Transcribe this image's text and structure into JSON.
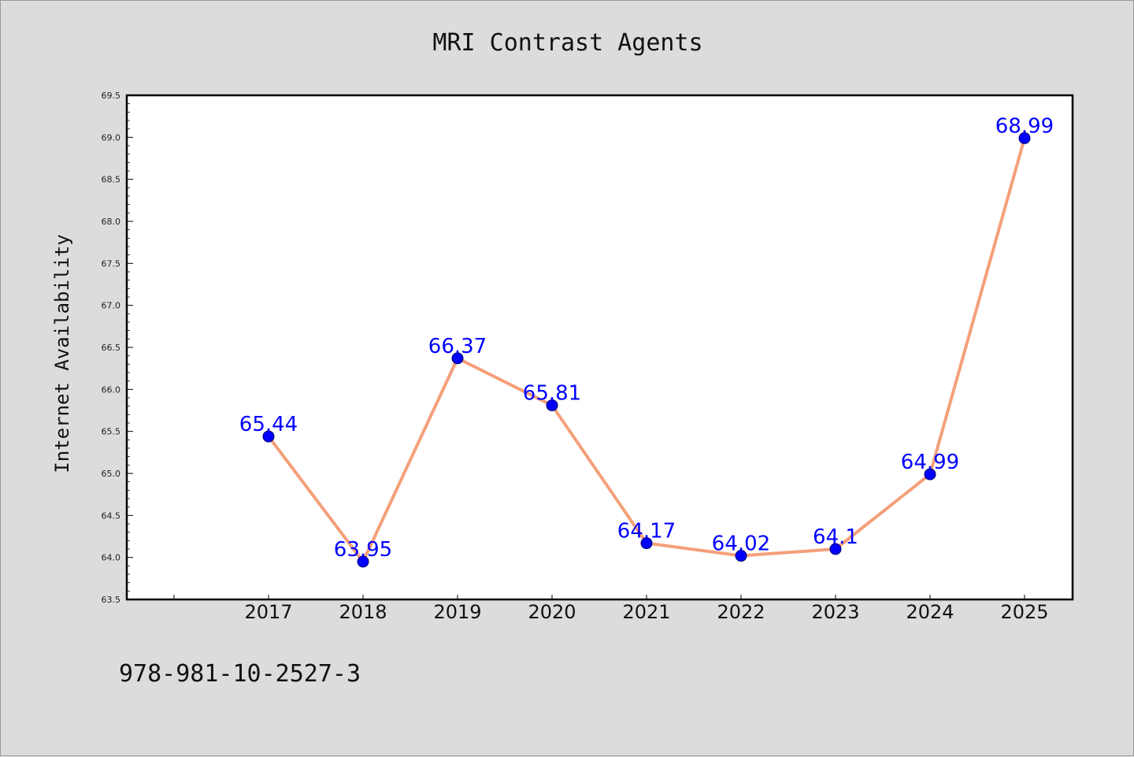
{
  "chart_data": {
    "type": "line",
    "title": "MRI Contrast Agents",
    "xlabel": "",
    "ylabel": "Internet Availability",
    "categories": [
      "2017",
      "2018",
      "2019",
      "2020",
      "2021",
      "2022",
      "2023",
      "2024",
      "2025"
    ],
    "values": [
      65.44,
      63.95,
      66.37,
      65.81,
      64.17,
      64.02,
      64.1,
      64.99,
      68.99
    ],
    "data_labels": [
      "65.44",
      "63.95",
      "66.37",
      "65.81",
      "64.17",
      "64.02",
      "64.1",
      "64.99",
      "68.99"
    ],
    "ylim": [
      63.5,
      69.5
    ],
    "yticks": [
      "63.5",
      "64.0",
      "64.5",
      "65.0",
      "65.5",
      "66.0",
      "66.5",
      "67.0",
      "67.5",
      "68.0",
      "68.5",
      "69.0",
      "69.5"
    ],
    "grid": false,
    "legend": "none",
    "colors": {
      "line": "#f4a07a",
      "marker": "#0000ff",
      "label": "#0000ff"
    }
  },
  "footer": {
    "isbn": "978-981-10-2527-3"
  }
}
